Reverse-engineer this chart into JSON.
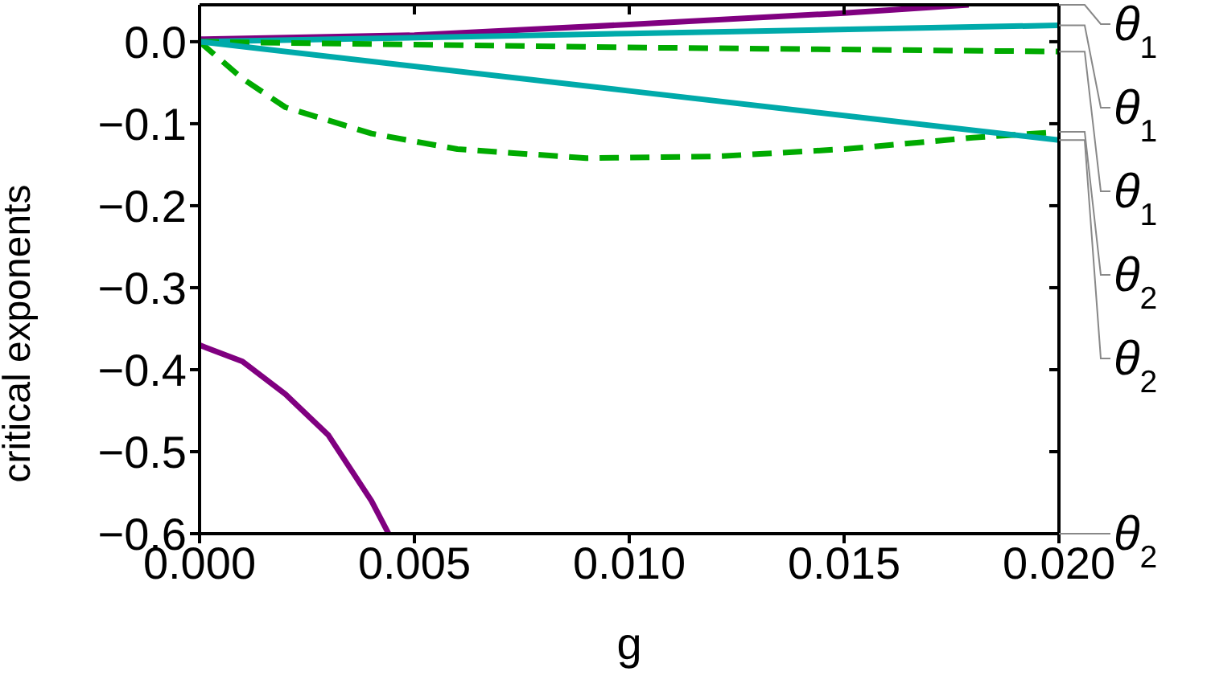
{
  "chart_data": {
    "type": "line",
    "xlabel": "g",
    "ylabel": "critical exponents",
    "xlim": [
      0,
      0.02
    ],
    "ylim": [
      -0.6,
      0.045
    ],
    "xticks": [
      {
        "value": 0,
        "label": "0.000"
      },
      {
        "value": 0.005,
        "label": "0.005"
      },
      {
        "value": 0.01,
        "label": "0.010"
      },
      {
        "value": 0.015,
        "label": "0.015"
      },
      {
        "value": 0.02,
        "label": "0.020"
      }
    ],
    "yticks": [
      {
        "value": -0.6,
        "label": "−0.6"
      },
      {
        "value": -0.5,
        "label": "−0.5"
      },
      {
        "value": -0.4,
        "label": "−0.4"
      },
      {
        "value": -0.3,
        "label": "−0.3"
      },
      {
        "value": -0.2,
        "label": "−0.2"
      },
      {
        "value": -0.1,
        "label": "−0.1"
      },
      {
        "value": 0,
        "label": "0.0"
      }
    ],
    "marker": "none",
    "series": [
      {
        "name": "θ$_{1}$",
        "color": "#800080",
        "line_style": "solid",
        "x": [
          0,
          0.005,
          0.01,
          0.015,
          0.0179
        ],
        "values": [
          0.003,
          0.008,
          0.021,
          0.035,
          0.045
        ]
      },
      {
        "name": "θ$_{1}$",
        "color": "#00aaaa",
        "line_style": "solid",
        "x": [
          0,
          0.01,
          0.02
        ],
        "values": [
          0,
          0.01,
          0.02
        ]
      },
      {
        "name": "θ$_{1}$",
        "color": "#00aa00",
        "line_style": "dashed",
        "x": [
          0,
          0.01,
          0.02
        ],
        "values": [
          0,
          -0.007,
          -0.012
        ]
      },
      {
        "name": "θ$_{2}$",
        "color": "#00aa00",
        "line_style": "dashed",
        "x": [
          0,
          0.001,
          0.002,
          0.004,
          0.006,
          0.009,
          0.012,
          0.015,
          0.018,
          0.02
        ],
        "values": [
          0,
          -0.045,
          -0.08,
          -0.112,
          -0.131,
          -0.142,
          -0.14,
          -0.131,
          -0.117,
          -0.11
        ]
      },
      {
        "name": "θ$_{2}$",
        "color": "#00aaaa",
        "line_style": "solid",
        "x": [
          0,
          0.01,
          0.02
        ],
        "values": [
          0,
          -0.06,
          -0.12
        ]
      },
      {
        "name": "θ$_{2}$",
        "color": "#800080",
        "line_style": "solid",
        "x": [
          0,
          0.001,
          0.002,
          0.003,
          0.004,
          0.0044
        ],
        "values": [
          -0.37,
          -0.39,
          -0.43,
          -0.48,
          -0.56,
          -0.6
        ]
      }
    ]
  }
}
